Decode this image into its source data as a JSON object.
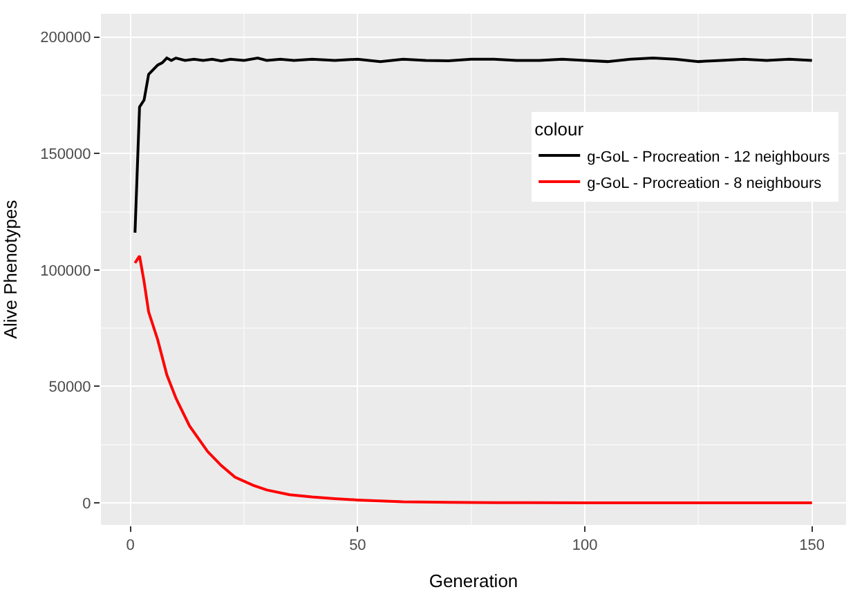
{
  "chart_data": {
    "type": "line",
    "xlabel": "Generation",
    "ylabel": "Alive Phenotypes",
    "legend_title": "colour",
    "legend": "right",
    "grid": true,
    "line_style": "solid",
    "marker": "none",
    "xlim": [
      -6.5,
      157.5
    ],
    "xticks": [
      0,
      50,
      100,
      150
    ],
    "ylim": [
      -9500,
      210000
    ],
    "yticks": [
      0,
      50000,
      100000,
      150000,
      200000
    ],
    "series": [
      {
        "name": "g-GoL - Procreation - 12 neighbours",
        "color": "#000000",
        "x": [
          1,
          2,
          3,
          4,
          5,
          6,
          7,
          8,
          9,
          10,
          12,
          14,
          16,
          18,
          20,
          22,
          25,
          28,
          30,
          33,
          36,
          40,
          45,
          50,
          55,
          60,
          65,
          70,
          75,
          80,
          85,
          90,
          95,
          100,
          105,
          110,
          115,
          120,
          125,
          130,
          135,
          140,
          145,
          150
        ],
        "values": [
          116000,
          170000,
          173000,
          184000,
          186000,
          188000,
          189000,
          191000,
          190000,
          191000,
          190000,
          190500,
          190000,
          190500,
          189800,
          190500,
          190000,
          191000,
          190000,
          190500,
          190000,
          190500,
          190000,
          190500,
          189500,
          190500,
          190000,
          189800,
          190500,
          190500,
          190000,
          190000,
          190500,
          190000,
          189500,
          190500,
          191000,
          190500,
          189500,
          190000,
          190500,
          190000,
          190500,
          190000
        ]
      },
      {
        "name": "g-GoL - Procreation - 8 neighbours",
        "color": "#ff0000",
        "x": [
          1,
          2,
          3,
          4,
          6,
          8,
          10,
          13,
          17,
          20,
          23,
          27,
          30,
          35,
          40,
          45,
          50,
          55,
          60,
          70,
          80,
          100,
          125,
          150
        ],
        "values": [
          103000,
          106000,
          95000,
          82000,
          70000,
          55000,
          45000,
          33000,
          22000,
          16000,
          11000,
          7500,
          5500,
          3500,
          2500,
          1800,
          1200,
          800,
          400,
          200,
          100,
          0,
          0,
          0
        ]
      }
    ]
  }
}
